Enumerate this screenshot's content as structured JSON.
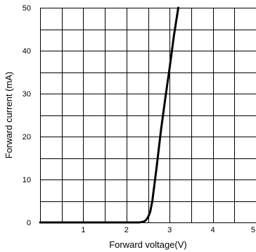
{
  "chart_data": {
    "type": "line",
    "title": "",
    "xlabel": "Forward voltage(V)",
    "ylabel": "Forward current (mA)",
    "xlim": [
      0,
      5
    ],
    "ylim": [
      0,
      50
    ],
    "x_ticks": [
      {
        "value": 0,
        "label": ""
      },
      {
        "value": 1,
        "label": "1"
      },
      {
        "value": 2,
        "label": "2"
      },
      {
        "value": 3,
        "label": "3"
      },
      {
        "value": 4,
        "label": "4"
      },
      {
        "value": 5,
        "label": "5"
      }
    ],
    "y_ticks": [
      {
        "value": 0,
        "label": "0"
      },
      {
        "value": 10,
        "label": "10"
      },
      {
        "value": 20,
        "label": "20"
      },
      {
        "value": 30,
        "label": "30"
      },
      {
        "value": 40,
        "label": "40"
      },
      {
        "value": 50,
        "label": "50"
      }
    ],
    "grid": true,
    "legend": "none",
    "series": [
      {
        "color": "#000000",
        "x": [
          0,
          2.3,
          2.4,
          2.45,
          2.5,
          2.55,
          2.6,
          2.7,
          2.8,
          2.9,
          3.0,
          3.1,
          3.2
        ],
        "y": [
          0,
          0,
          0.2,
          0.5,
          1.2,
          2.5,
          5,
          13,
          21.5,
          29,
          36,
          43.5,
          50
        ]
      }
    ]
  }
}
